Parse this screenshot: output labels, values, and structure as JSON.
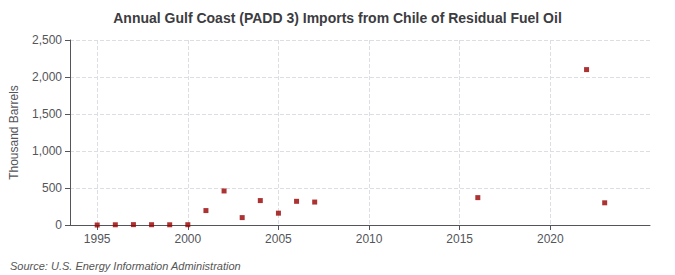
{
  "chart_data": {
    "type": "scatter",
    "title": "Annual Gulf Coast (PADD 3) Imports from Chile of Residual Fuel Oil",
    "ylabel": "Thousand Barrels",
    "annotations": [
      "Source: U.S. Energy Information Administration"
    ],
    "x": [
      1995,
      1996,
      1997,
      1998,
      1999,
      2000,
      2001,
      2002,
      2003,
      2004,
      2005,
      2006,
      2007,
      2016,
      2022,
      2023
    ],
    "values": [
      0,
      3,
      5,
      4,
      3,
      4,
      195,
      460,
      100,
      330,
      160,
      320,
      310,
      370,
      2100,
      300
    ],
    "color": "#990000",
    "marker": "square",
    "xlim": [
      1993.5,
      2025.5
    ],
    "xticks": [
      1995,
      2000,
      2005,
      2010,
      2015,
      2020
    ],
    "ylim": [
      0,
      2500
    ],
    "yticks": [
      0,
      500,
      {
        "value": 1000,
        "label": "1,000"
      },
      {
        "value": 1500,
        "label": "1,500"
      },
      {
        "value": 2000,
        "label": "2,000"
      },
      {
        "value": 2500,
        "label": "2,500"
      }
    ],
    "grid": true
  }
}
